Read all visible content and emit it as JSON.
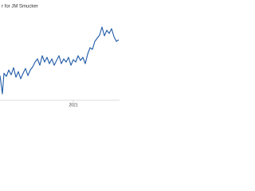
{
  "chart_data": {
    "type": "line",
    "title": "r for JM Smucker",
    "x": [
      0,
      3,
      5,
      8,
      11,
      14,
      17,
      20,
      23,
      26,
      29,
      32,
      35,
      38,
      41,
      44,
      47,
      50,
      53,
      56,
      59,
      62,
      65,
      68,
      71,
      74,
      77,
      80,
      83,
      86,
      89,
      92,
      95,
      98,
      101,
      104,
      107,
      110,
      113,
      116,
      119,
      122,
      125,
      128,
      131,
      134,
      137,
      140,
      143,
      146,
      149
    ],
    "series": [
      {
        "color": "#1f5aa6",
        "values": [
          31,
          8,
          34,
          30,
          38,
          32,
          41,
          29,
          36,
          27,
          34,
          40,
          31,
          38,
          42,
          48,
          52,
          44,
          56,
          48,
          54,
          46,
          52,
          44,
          50,
          56,
          46,
          52,
          48,
          54,
          44,
          51,
          48,
          56,
          50,
          54,
          46,
          58,
          66,
          64,
          74,
          78,
          82,
          92,
          81,
          88,
          84,
          90,
          80,
          74,
          76
        ]
      }
    ],
    "xlim": [
      0,
      150
    ],
    "ylim": [
      0,
      126
    ],
    "xticks": [
      {
        "value": 92,
        "label": "2021"
      }
    ]
  }
}
